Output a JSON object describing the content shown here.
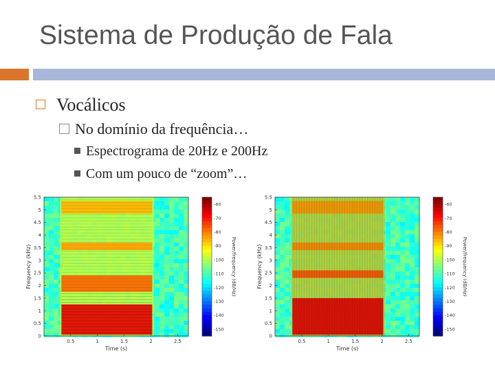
{
  "slide": {
    "title": "Sistema de Produção de Fala",
    "bullets": {
      "level1": "Vocálicos",
      "level2": "No domínio da frequência…",
      "level3": [
        "Espectrograma de 20Hz e 200Hz",
        "Com um pouco de “zoom”…"
      ]
    }
  },
  "colors": {
    "accent_orange": "#d9762b",
    "accent_blue": "#a7b7d9"
  },
  "icons": {
    "level1_marker": "hollow-square-icon",
    "level2_marker": "checkbox-icon",
    "level3_marker": "filled-square-icon"
  },
  "chart_data": [
    {
      "type": "heatmap",
      "title": "",
      "xlabel": "Time (s)",
      "ylabel": "Frequency (kHz)",
      "colorbar_label": "Power/frequency (dB/Hz)",
      "xlim": [
        0,
        2.7
      ],
      "ylim": [
        0,
        5.5
      ],
      "x_ticks": [
        "0.5",
        "1",
        "1.5",
        "2",
        "2.5"
      ],
      "y_ticks": [
        "0",
        "0.5",
        "1",
        "1.5",
        "2",
        "2.5",
        "3",
        "3.5",
        "4",
        "4.5",
        "5",
        "5.5"
      ],
      "colorbar_ticks": [
        "-60",
        "-70",
        "-80",
        "-90",
        "-100",
        "-110",
        "-120",
        "-130",
        "-140",
        "-150"
      ],
      "colorbar_range": [
        -155,
        -55
      ],
      "voiced_segment": [
        0.3,
        2.05
      ],
      "energy_bands_khz": [
        [
          0.05,
          1.25
        ],
        [
          1.75,
          2.4
        ],
        [
          3.4,
          3.7
        ],
        [
          4.85,
          5.35
        ]
      ]
    },
    {
      "type": "heatmap",
      "title": "",
      "xlabel": "Time (s)",
      "ylabel": "Frequency (kHz)",
      "colorbar_label": "Power/frequency (dB/Hz)",
      "xlim": [
        0,
        2.7
      ],
      "ylim": [
        0,
        5.5
      ],
      "x_ticks": [
        "0.5",
        "1",
        "1.5",
        "2",
        "2.5"
      ],
      "y_ticks": [
        "0",
        "0.5",
        "1",
        "1.5",
        "2",
        "2.5",
        "3",
        "3.5",
        "4",
        "4.5",
        "5",
        "5.5"
      ],
      "colorbar_ticks": [
        "-60",
        "-70",
        "-80",
        "-90",
        "-100",
        "-110",
        "-120",
        "-130",
        "-140",
        "-150"
      ],
      "colorbar_range": [
        -155,
        -55
      ],
      "voiced_segment": [
        0.3,
        2.05
      ],
      "energy_bands_khz": [
        [
          0.05,
          1.5
        ],
        [
          2.3,
          2.6
        ],
        [
          3.4,
          3.7
        ],
        [
          4.85,
          5.35
        ]
      ]
    }
  ]
}
